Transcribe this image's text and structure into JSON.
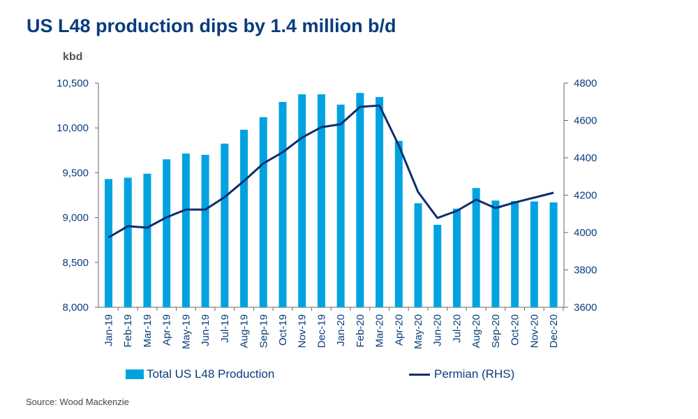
{
  "header": {
    "title": "US L48 production dips by 1.4 million b/d",
    "unit": "kbd"
  },
  "footer": {
    "source": "Source: Wood Mackenzie"
  },
  "colors": {
    "bars": "#00a3e0",
    "line": "#0a2f6e",
    "text": "#0a3c7d"
  },
  "chart_data": {
    "type": "bar+line",
    "title": "US L48 production dips by 1.4 million b/d",
    "ylabel": "kbd",
    "categories": [
      "Jan-19",
      "Feb-19",
      "Mar-19",
      "Apr-19",
      "May-19",
      "Jun-19",
      "Jul-19",
      "Aug-19",
      "Sep-19",
      "Oct-19",
      "Nov-19",
      "Dec-19",
      "Jan-20",
      "Feb-20",
      "Mar-20",
      "Apr-20",
      "May-20",
      "Jun-20",
      "Jul-20",
      "Aug-20",
      "Sep-20",
      "Oct-20",
      "Nov-20",
      "Dec-20"
    ],
    "series": [
      {
        "name": "Total US L48 Production",
        "type": "bar",
        "axis": "left",
        "values": [
          9430,
          9445,
          9490,
          9650,
          9715,
          9700,
          9825,
          9980,
          10120,
          10290,
          10375,
          10375,
          10260,
          10390,
          10345,
          9855,
          9160,
          8920,
          9100,
          9330,
          9190,
          9185,
          9180,
          9170
        ]
      },
      {
        "name": "Permian (RHS)",
        "type": "line",
        "axis": "right",
        "values": [
          3974,
          4034,
          4026,
          4082,
          4123,
          4123,
          4190,
          4276,
          4370,
          4430,
          4508,
          4564,
          4580,
          4673,
          4680,
          4467,
          4217,
          4078,
          4116,
          4176,
          4131,
          4161,
          4187,
          4213
        ]
      }
    ],
    "ylim_left": [
      8000,
      10500
    ],
    "yticks_left": [
      "8,000",
      "8,500",
      "9,000",
      "9,500",
      "10,000",
      "10,500"
    ],
    "ylim_right": [
      3600,
      4800
    ],
    "yticks_right": [
      "3600",
      "3800",
      "4000",
      "4200",
      "4400",
      "4600",
      "4800"
    ],
    "grid": false,
    "legend": "bottom"
  }
}
